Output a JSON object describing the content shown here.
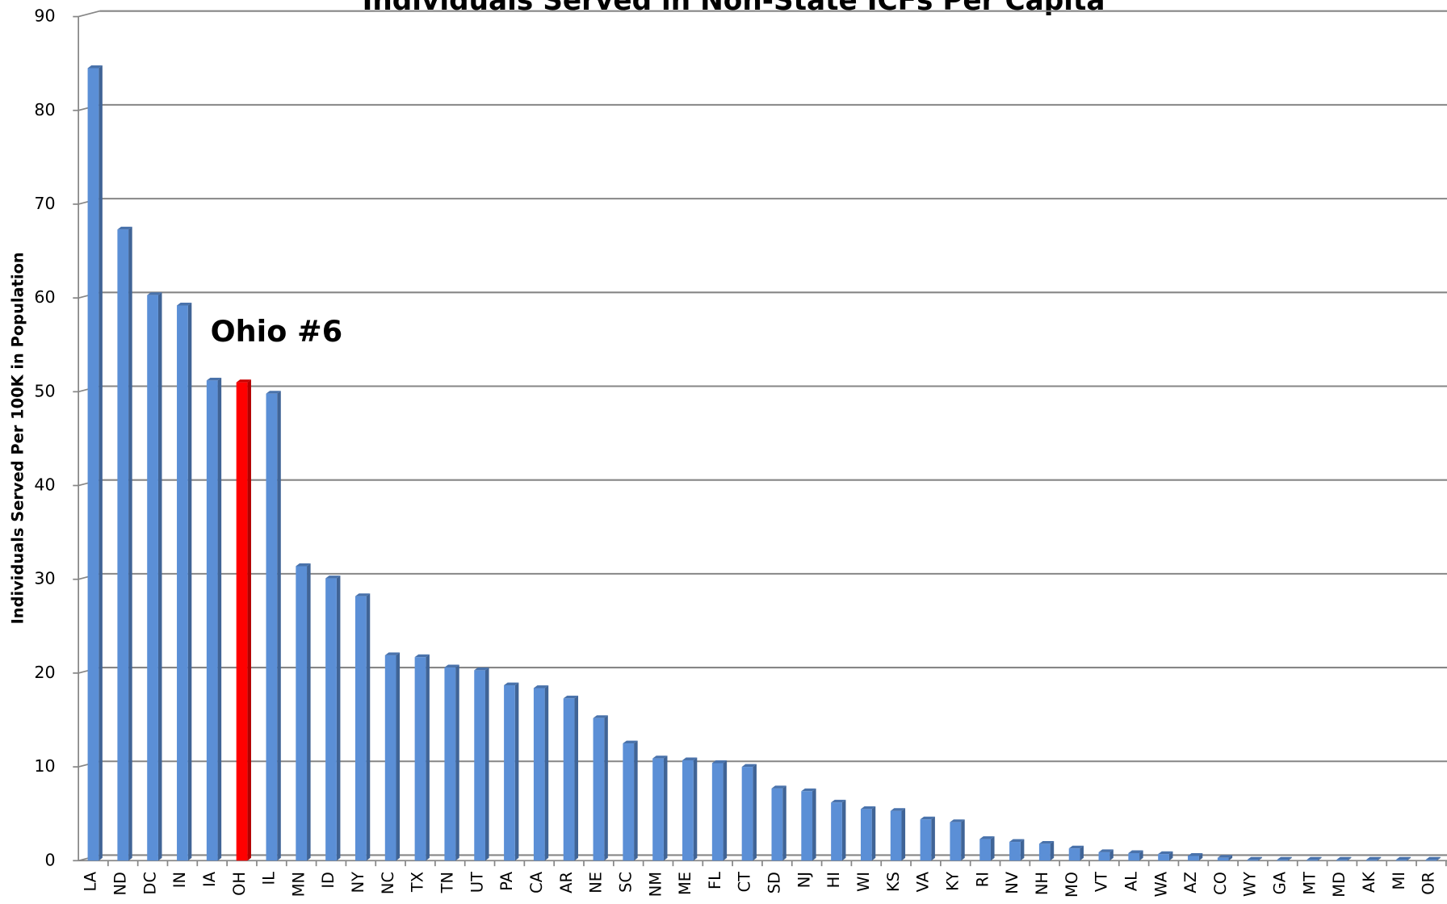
{
  "chart_data": {
    "type": "bar",
    "title": "Individuals Served in Non-State ICFs Per Capita",
    "y_label": "Individuals Served Per 100K in Population",
    "annotation": "Ohio #6",
    "categories": [
      "LA",
      "ND",
      "DC",
      "IN",
      "IA",
      "OH",
      "IL",
      "MN",
      "ID",
      "NY",
      "NC",
      "TX",
      "TN",
      "UT",
      "PA",
      "CA",
      "AR",
      "NE",
      "SC",
      "NM",
      "ME",
      "FL",
      "CT",
      "SD",
      "NJ",
      "HI",
      "WI",
      "KS",
      "VA",
      "KY",
      "RI",
      "NV",
      "NH",
      "MO",
      "VT",
      "AL",
      "WA",
      "AZ",
      "CO",
      "WY",
      "GA",
      "MT",
      "MD",
      "AK",
      "MI",
      "OR"
    ],
    "values": [
      84.5,
      67.3,
      60.3,
      59.2,
      51.2,
      51,
      49.8,
      31.4,
      30.1,
      28.2,
      21.9,
      21.7,
      20.6,
      20.3,
      18.7,
      18.4,
      17.3,
      15.2,
      12.5,
      10.9,
      10.7,
      10.4,
      10,
      7.7,
      7.4,
      6.2,
      5.5,
      5.3,
      4.4,
      4.1,
      2.3,
      2.0,
      1.8,
      1.3,
      0.9,
      0.8,
      0.7,
      0.5,
      0.3,
      0.1,
      0.1,
      0.1,
      0.1,
      0.1,
      0.1,
      0.1
    ],
    "colors": [
      "#5b8fd6",
      "#5b8fd6",
      "#5b8fd6",
      "#5b8fd6",
      "#5b8fd6",
      "#ff0000",
      "#5b8fd6",
      "#5b8fd6",
      "#5b8fd6",
      "#5b8fd6",
      "#5b8fd6",
      "#5b8fd6",
      "#5b8fd6",
      "#5b8fd6",
      "#5b8fd6",
      "#5b8fd6",
      "#5b8fd6",
      "#5b8fd6",
      "#5b8fd6",
      "#5b8fd6",
      "#5b8fd6",
      "#5b8fd6",
      "#5b8fd6",
      "#5b8fd6",
      "#5b8fd6",
      "#5b8fd6",
      "#5b8fd6",
      "#5b8fd6",
      "#5b8fd6",
      "#5b8fd6",
      "#5b8fd6",
      "#5b8fd6",
      "#5b8fd6",
      "#5b8fd6",
      "#5b8fd6",
      "#5b8fd6",
      "#5b8fd6",
      "#5b8fd6",
      "#5b8fd6",
      "#5b8fd6",
      "#5b8fd6",
      "#5b8fd6",
      "#5b8fd6",
      "#5b8fd6",
      "#5b8fd6",
      "#5b8fd6"
    ],
    "ylim": [
      0,
      90
    ],
    "yticks": [
      0,
      10,
      20,
      30,
      40,
      50,
      60,
      70,
      80,
      90
    ],
    "grid": true
  }
}
